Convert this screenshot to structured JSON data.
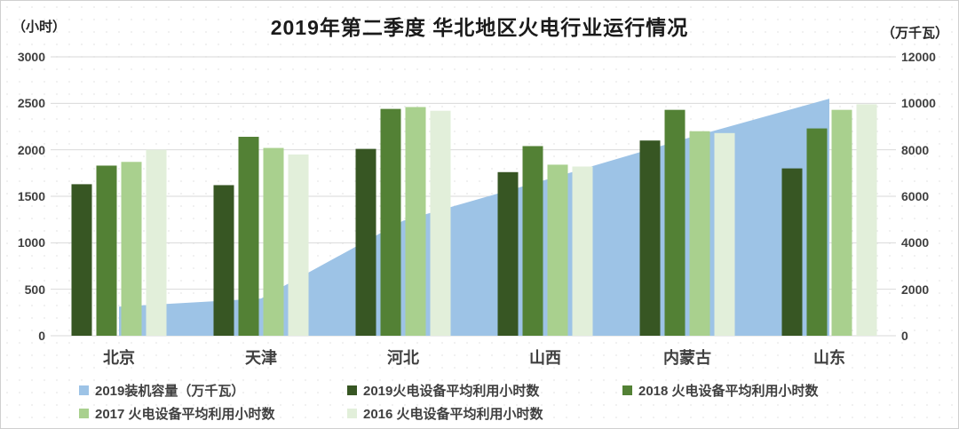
{
  "chart_data": {
    "type": "combo-bar-area",
    "title": "2019年第二季度  华北地区火电行业运行情况",
    "categories": [
      "北京",
      "天津",
      "河北",
      "山西",
      "内蒙古",
      "山东"
    ],
    "series": [
      {
        "id": "capacity-2019",
        "name": "2019装机容量（万千瓦）",
        "type": "area",
        "axis": "right",
        "color": "#9DC3E6",
        "values": [
          1250,
          1600,
          4950,
          6700,
          8500,
          10200
        ]
      },
      {
        "id": "hours-2019",
        "name": "2019火电设备平均利用小时数",
        "type": "bar",
        "axis": "left",
        "color": "#375623",
        "values": [
          1630,
          1620,
          2010,
          1760,
          2100,
          1800
        ]
      },
      {
        "id": "hours-2018",
        "name": "2018  火电设备平均利用小时数",
        "type": "bar",
        "axis": "left",
        "color": "#538135",
        "values": [
          1830,
          2140,
          2440,
          2040,
          2430,
          2230
        ]
      },
      {
        "id": "hours-2017",
        "name": "2017  火电设备平均利用小时数",
        "type": "bar",
        "axis": "left",
        "color": "#A9D08E",
        "values": [
          1870,
          2020,
          2460,
          1840,
          2200,
          2430
        ]
      },
      {
        "id": "hours-2016",
        "name": "2016  火电设备平均利用小时数",
        "type": "bar",
        "axis": "left",
        "color": "#E2EFDA",
        "values": [
          2000,
          1950,
          2420,
          1820,
          2180,
          2490
        ]
      }
    ],
    "left_axis": {
      "unit": "（小时）",
      "ticks": [
        "3000",
        "2500",
        "2000",
        "1500",
        "1000",
        "500",
        "0"
      ],
      "range": [
        0,
        3000
      ]
    },
    "right_axis": {
      "unit": "（万千瓦）",
      "ticks": [
        "12000",
        "10000",
        "8000",
        "6000",
        "4000",
        "2000",
        "0"
      ],
      "range": [
        0,
        12000
      ]
    },
    "grid": true,
    "gridline_color": "#d9d9d9",
    "legend_position": "bottom"
  }
}
